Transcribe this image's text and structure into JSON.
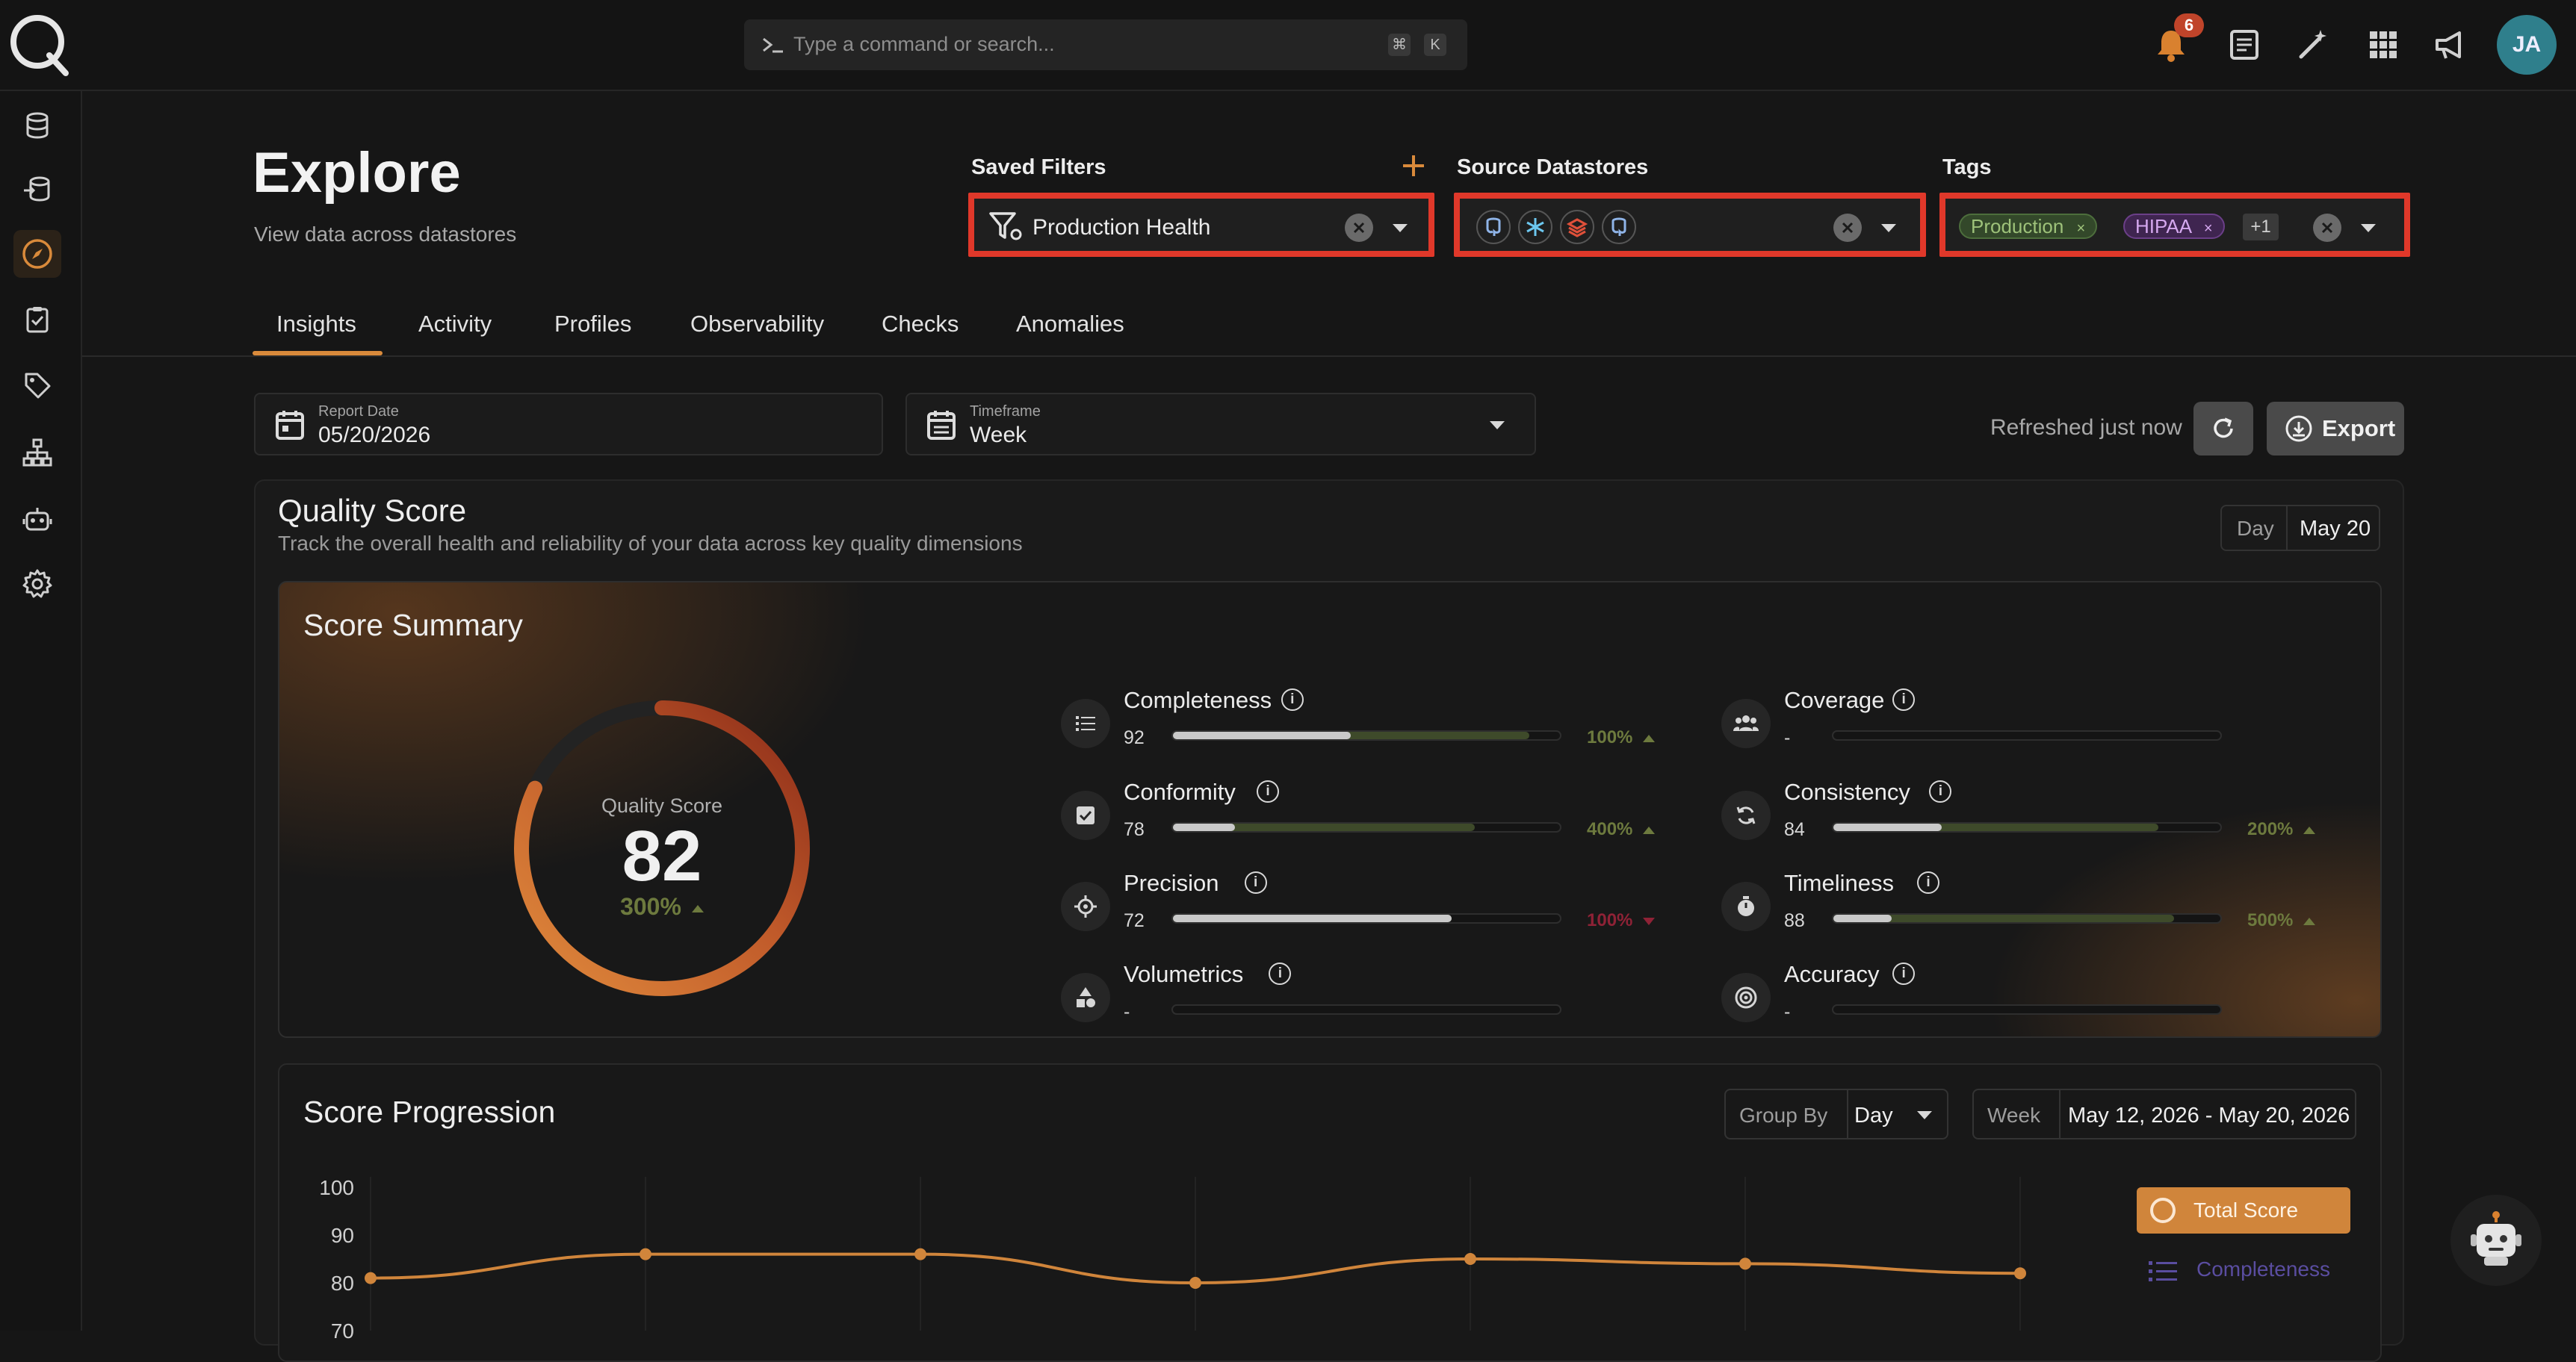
{
  "search": {
    "placeholder": "Type a command or search...",
    "shortcut_keys": [
      "⌘",
      "K"
    ]
  },
  "notifications": {
    "count": "6"
  },
  "user": {
    "initials": "JA"
  },
  "sidebar": {
    "items": [
      {
        "name": "datastores",
        "icon": "database-icon"
      },
      {
        "name": "enrichment",
        "icon": "stack-icon"
      },
      {
        "name": "explore",
        "icon": "compass-icon",
        "active": true
      },
      {
        "name": "checks",
        "icon": "clipboard-check-icon"
      },
      {
        "name": "tags",
        "icon": "tag-icon"
      },
      {
        "name": "flows",
        "icon": "hierarchy-icon"
      },
      {
        "name": "agents",
        "icon": "robot-icon"
      },
      {
        "name": "settings",
        "icon": "gear-icon"
      }
    ]
  },
  "header": {
    "title": "Explore",
    "subtitle": "View data across datastores"
  },
  "filters": {
    "saved": {
      "label": "Saved Filters",
      "value": "Production Health"
    },
    "source": {
      "label": "Source Datastores",
      "icons": [
        "postgres-icon",
        "snowflake-icon",
        "databricks-icon",
        "postgres-icon"
      ]
    },
    "tags": {
      "label": "Tags",
      "chips": [
        "Production",
        "HIPAA"
      ],
      "more": "+1"
    },
    "colors": {
      "highlight": "#e0382a",
      "production_chip": "#3c5a2e",
      "hipaa_chip": "#4a2a5e"
    }
  },
  "tabs": [
    {
      "label": "Insights",
      "active": true
    },
    {
      "label": "Activity"
    },
    {
      "label": "Profiles"
    },
    {
      "label": "Observability"
    },
    {
      "label": "Checks"
    },
    {
      "label": "Anomalies"
    }
  ],
  "controls": {
    "report_date_label": "Report Date",
    "report_date": "05/20/2026",
    "timeframe_label": "Timeframe",
    "timeframe": "Week",
    "refreshed": "Refreshed just now",
    "export": "Export"
  },
  "quality": {
    "title": "Quality Score",
    "subtitle": "Track the overall health and reliability of your data across key quality dimensions",
    "day_label": "Day",
    "day_value": "May 20",
    "summary_title": "Score Summary",
    "gauge_label": "Quality Score",
    "score": "82",
    "score_fraction": 0.82,
    "change": "300%",
    "accent": "#d0853b"
  },
  "metrics": [
    {
      "name": "Completeness",
      "value": "92",
      "fraction": 0.92,
      "prev": 0.46,
      "change": "100%",
      "dir": "up",
      "icon": "list-icon"
    },
    {
      "name": "Coverage",
      "value": "-",
      "fraction": 0,
      "prev": 0,
      "change": "",
      "dir": "",
      "icon": "people-icon"
    },
    {
      "name": "Conformity",
      "value": "78",
      "fraction": 0.78,
      "prev": 0.16,
      "change": "400%",
      "dir": "up",
      "icon": "checkbox-icon"
    },
    {
      "name": "Consistency",
      "value": "84",
      "fraction": 0.84,
      "prev": 0.28,
      "change": "200%",
      "dir": "up",
      "icon": "sync-icon"
    },
    {
      "name": "Precision",
      "value": "72",
      "fraction": 0.72,
      "prev": 0.72,
      "change": "100%",
      "dir": "down",
      "icon": "crosshair-icon"
    },
    {
      "name": "Timeliness",
      "value": "88",
      "fraction": 0.88,
      "prev": 0.15,
      "change": "500%",
      "dir": "up",
      "icon": "stopwatch-icon"
    },
    {
      "name": "Volumetrics",
      "value": "-",
      "fraction": 0,
      "prev": 0,
      "change": "",
      "dir": "",
      "icon": "shapes-icon"
    },
    {
      "name": "Accuracy",
      "value": "-",
      "fraction": 0,
      "prev": 0,
      "change": "",
      "dir": "",
      "icon": "target-icon"
    }
  ],
  "progression": {
    "title": "Score Progression",
    "group_by_label": "Group By",
    "group_by": "Day",
    "range_label": "Week",
    "range": "May 12, 2026 - May 20, 2026",
    "legend": [
      "Total Score",
      "Completeness"
    ]
  },
  "chart_data": {
    "type": "line",
    "y_ticks": [
      "100",
      "90",
      "80",
      "70"
    ],
    "ylim": [
      70,
      100
    ],
    "series": [
      {
        "name": "Total Score",
        "values": [
          81,
          86,
          86,
          80,
          85,
          84,
          82
        ],
        "color": "#d0853b"
      }
    ]
  }
}
